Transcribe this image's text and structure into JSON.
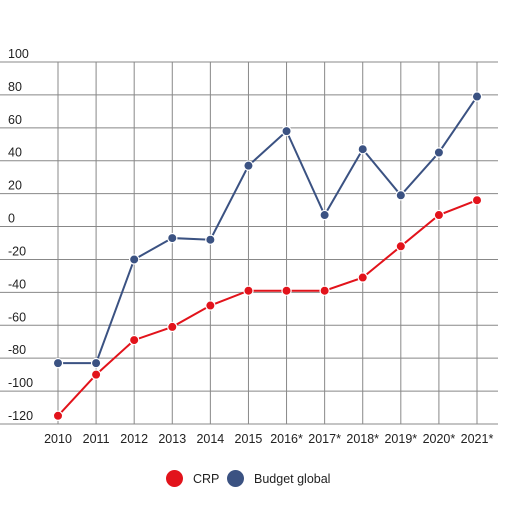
{
  "chart_data": {
    "type": "line",
    "categories": [
      "2010",
      "2011",
      "2012",
      "2013",
      "2014",
      "2015",
      "2016*",
      "2017*",
      "2018*",
      "2019*",
      "2020*",
      "2021*"
    ],
    "ylim": [
      -120,
      100
    ],
    "yticks": [
      "100",
      "80",
      "60",
      "40",
      "20",
      "0",
      "-20",
      "-40",
      "-60",
      "-80",
      "-100",
      "-120"
    ],
    "grid": true,
    "legend_position": "bottom-center",
    "series": [
      {
        "name": "CRP",
        "color": "#e2131b",
        "values": [
          -115,
          -90,
          -69,
          -61,
          -48,
          -39,
          -39,
          -39,
          -31,
          -12,
          7,
          16
        ]
      },
      {
        "name": "Budget global",
        "color": "#3b5282",
        "values": [
          -83,
          -83,
          -20,
          -7,
          -8,
          37,
          58,
          7,
          47,
          19,
          45,
          79
        ]
      }
    ]
  }
}
